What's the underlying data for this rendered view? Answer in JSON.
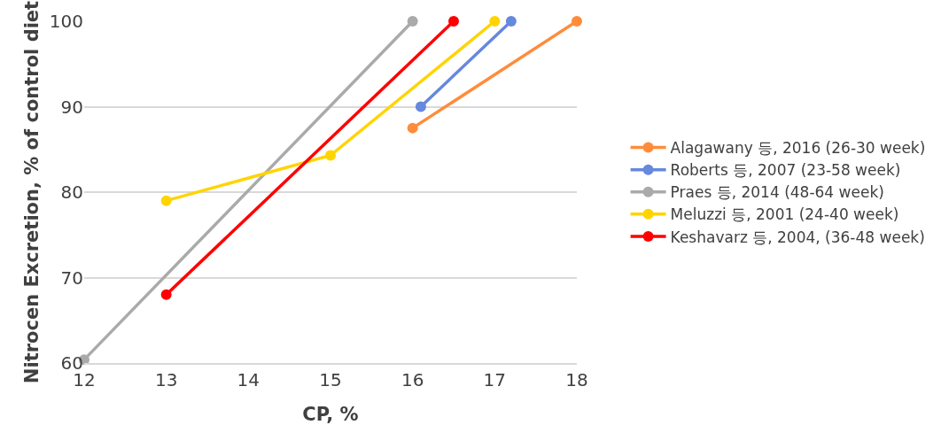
{
  "chart_data": {
    "type": "line",
    "xlabel": "CP, %",
    "ylabel": "Nitrocen Excretion, % of control diet",
    "series": [
      {
        "name": "Alagawany 등, 2016 (26-30 week)",
        "color": "#ff8c3a",
        "x": [
          16,
          18
        ],
        "values": [
          87.5,
          100
        ]
      },
      {
        "name": "Roberts 등, 2007 (23-58 week)",
        "color": "#6688dd",
        "x": [
          16.1,
          17.2
        ],
        "values": [
          90,
          100
        ]
      },
      {
        "name": "Praes 등, 2014 (48-64 week)",
        "color": "#aaaaaa",
        "x": [
          12,
          16
        ],
        "values": [
          60.4,
          100
        ]
      },
      {
        "name": "Meluzzi 등, 2001 (24-40 week)",
        "color": "#ffd400",
        "x": [
          13,
          15,
          17
        ],
        "values": [
          79,
          84.3,
          100
        ]
      },
      {
        "name": "Keshavarz 등, 2004, (36-48 week)",
        "color": "#ff0000",
        "x": [
          13,
          16.5
        ],
        "values": [
          68,
          100
        ]
      }
    ],
    "xlim": [
      12,
      18
    ],
    "xticks": [
      12,
      13,
      14,
      15,
      16,
      17,
      18
    ],
    "ylim": [
      60,
      100
    ],
    "yticks": [
      60,
      70,
      80,
      90,
      100
    ],
    "grid": "y",
    "legend": "right",
    "marker": "circle",
    "line_style": "solid"
  }
}
